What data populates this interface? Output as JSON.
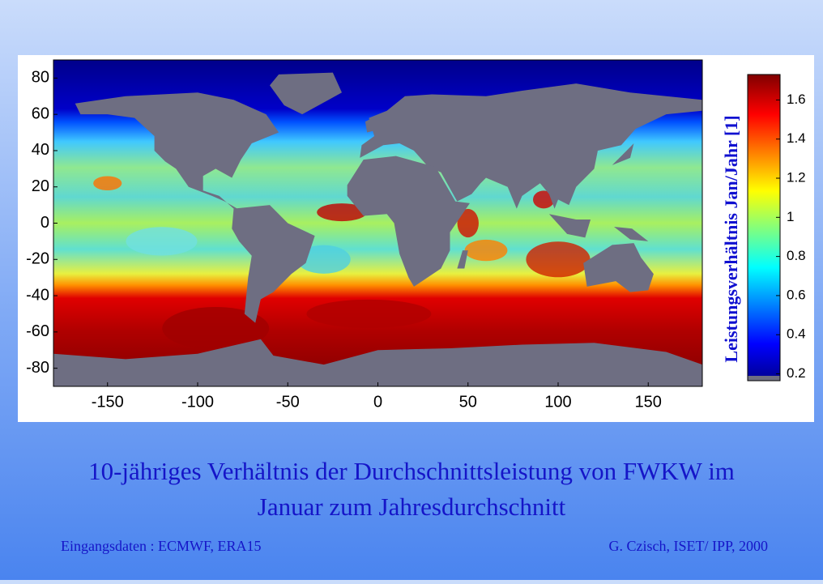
{
  "chart_data": {
    "type": "heatmap",
    "xlim": [
      -180,
      180
    ],
    "xticks": [
      -150,
      -100,
      -50,
      0,
      50,
      100,
      150
    ],
    "ylim": [
      -90,
      90
    ],
    "yticks": [
      -80,
      -60,
      -40,
      -20,
      0,
      20,
      40,
      60,
      80
    ],
    "colorbar": {
      "label": "Leistungsverhältnis Jan/Jahr  [1]",
      "lim": [
        0.165,
        1.73
      ],
      "ticks": [
        0.2,
        0.4,
        0.6,
        0.8,
        1,
        1.2,
        1.4,
        1.6
      ]
    }
  },
  "caption": {
    "title_line1": "10-jähriges Verhältnis der Durchschnittsleistung von FWKW im",
    "title_line2": "Januar zum Jahresdurchschnitt",
    "source": "Eingangsdaten : ECMWF, ERA15",
    "author": "G. Czisch, ISET/ IPP, 2000"
  }
}
